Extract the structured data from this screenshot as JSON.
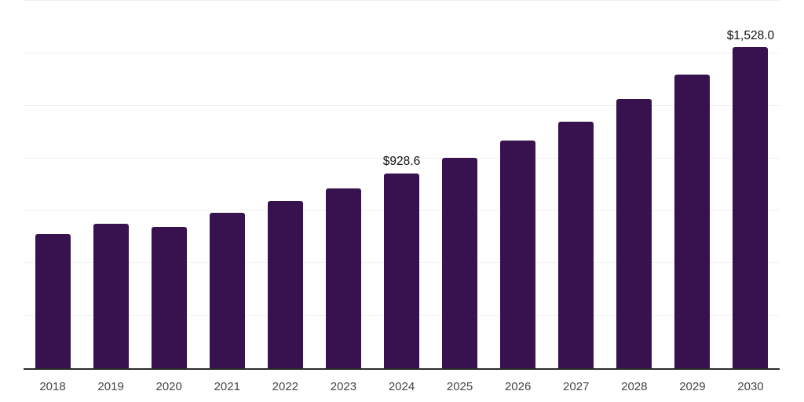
{
  "chart_data": {
    "type": "bar",
    "categories": [
      "2018",
      "2019",
      "2020",
      "2021",
      "2022",
      "2023",
      "2024",
      "2025",
      "2026",
      "2027",
      "2028",
      "2029",
      "2030"
    ],
    "values": [
      639,
      689,
      674,
      740,
      796,
      858,
      928.6,
      1004,
      1083,
      1176,
      1282,
      1399,
      1528
    ],
    "data_labels": {
      "2024": "$928.6",
      "2030": "$1,528.0"
    },
    "title": "",
    "xlabel": "",
    "ylabel": "",
    "ylim": [
      0,
      1750
    ],
    "gridline_step": 250,
    "grid": "horizontal-only",
    "legend": "none",
    "colors": {
      "bar": "#38124e",
      "gridline": "#f0f0f0",
      "axis_line": "#2b2b2b",
      "tick_label": "#454545",
      "data_label": "#121212",
      "background": "#ffffff"
    }
  }
}
